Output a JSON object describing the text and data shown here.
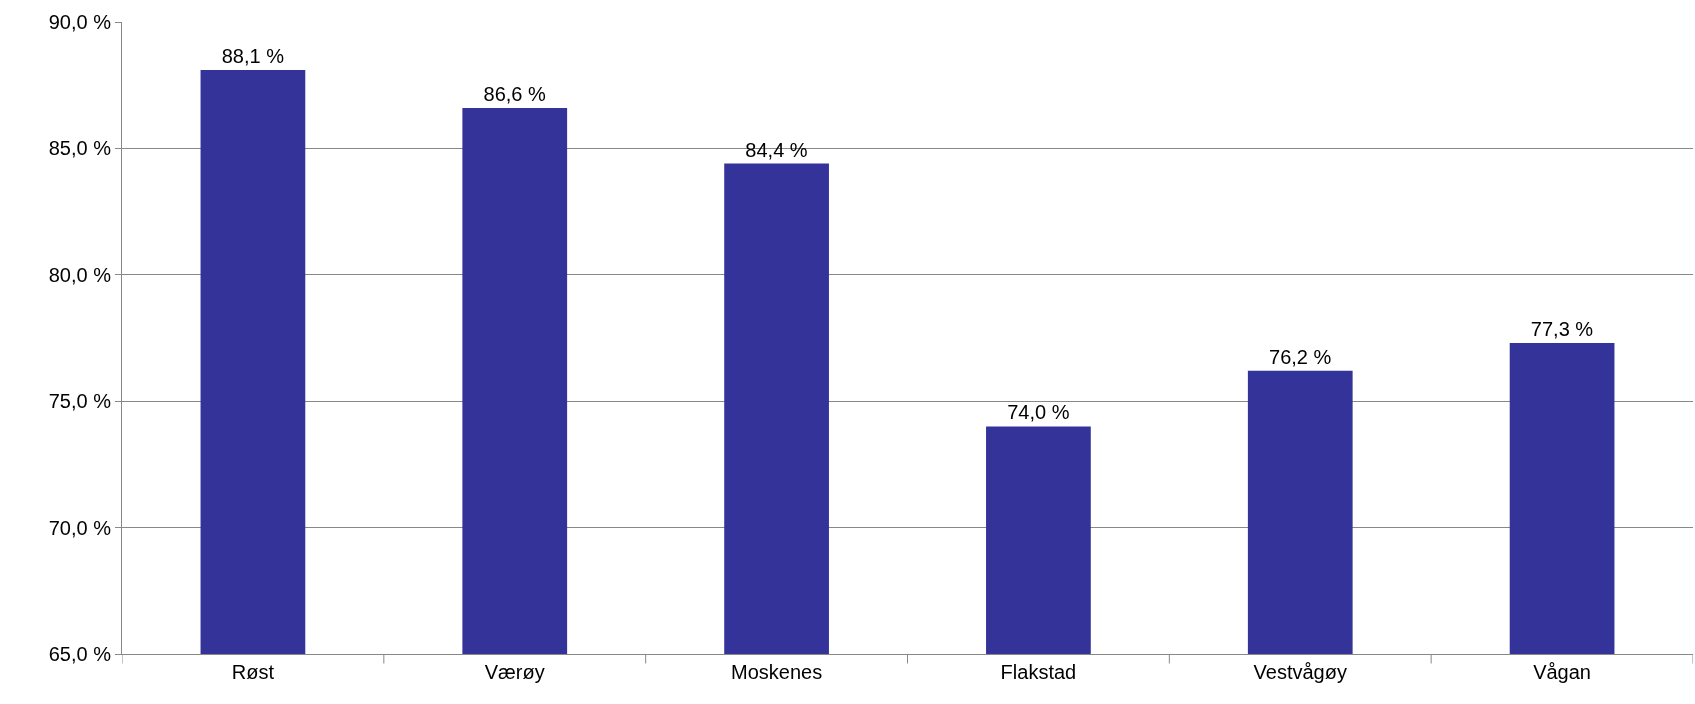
{
  "chart_data": {
    "type": "bar",
    "categories": [
      "Røst",
      "Værøy",
      "Moskenes",
      "Flakstad",
      "Vestvågøy",
      "Vågan"
    ],
    "values": [
      88.1,
      86.6,
      84.4,
      74.0,
      76.2,
      77.3
    ],
    "value_labels": [
      "88,1 %",
      "86,6 %",
      "84,4 %",
      "74,0 %",
      "76,2 %",
      "77,3 %"
    ],
    "color": "#333399",
    "ylim": [
      65,
      90
    ],
    "yticks": [
      {
        "value": 65,
        "label": "65,0 %"
      },
      {
        "value": 70,
        "label": "70,0 %"
      },
      {
        "value": 75,
        "label": "75,0 %"
      },
      {
        "value": 80,
        "label": "80,0 %"
      },
      {
        "value": 85,
        "label": "85,0 %"
      },
      {
        "value": 90,
        "label": "90,0 %"
      }
    ],
    "grid": "y",
    "legend": false
  }
}
